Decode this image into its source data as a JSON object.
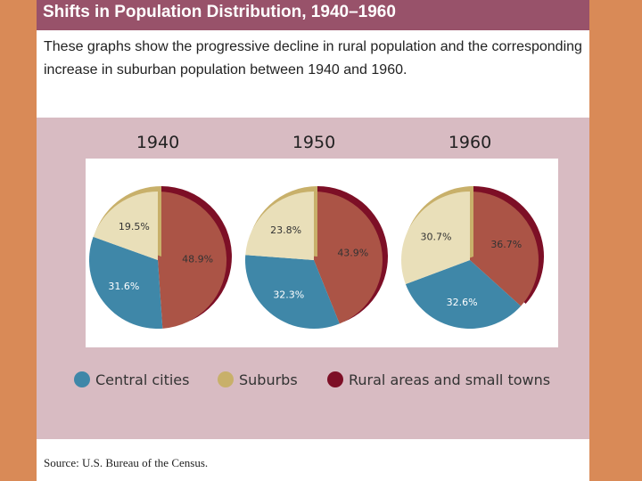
{
  "header": {
    "title": "Shifts in Population Distribution, 1940–1960",
    "subtitle": "These graphs show the progressive decline in rural population and the corresponding increase in suburban population between 1940 and 1960."
  },
  "footer": {
    "source": "Source: U.S. Bureau of the Census."
  },
  "legend": [
    {
      "label": "Central cities",
      "color": "#3f87a8"
    },
    {
      "label": "Suburbs",
      "color": "#c8b06a"
    },
    {
      "label": "Rural areas and small towns",
      "color": "#7d0f26"
    }
  ],
  "colors": {
    "central_cities": "#3f87a8",
    "suburbs": "#e9dfb9",
    "suburbs_rim": "#c8b06a",
    "rural": "#ab5446",
    "rural_rim": "#7d0f26"
  },
  "chart_data": [
    {
      "type": "pie",
      "title": "1940",
      "categories": [
        "Rural areas and small towns",
        "Central cities",
        "Suburbs"
      ],
      "values": [
        48.9,
        31.6,
        19.5
      ],
      "labels": [
        "48.9%",
        "31.6%",
        "19.5%"
      ]
    },
    {
      "type": "pie",
      "title": "1950",
      "categories": [
        "Rural areas and small towns",
        "Central cities",
        "Suburbs"
      ],
      "values": [
        43.9,
        32.3,
        23.8
      ],
      "labels": [
        "43.9%",
        "32.3%",
        "23.8%"
      ]
    },
    {
      "type": "pie",
      "title": "1960",
      "categories": [
        "Rural areas and small towns",
        "Central cities",
        "Suburbs"
      ],
      "values": [
        36.7,
        32.6,
        30.7
      ],
      "labels": [
        "36.7%",
        "32.6%",
        "30.7%"
      ]
    }
  ]
}
